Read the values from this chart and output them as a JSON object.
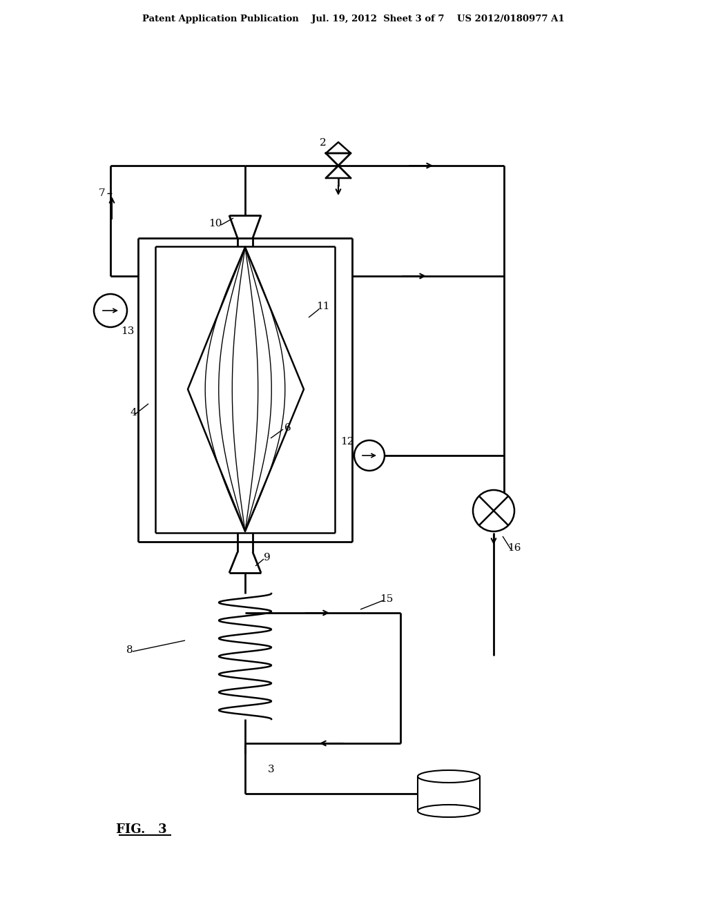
{
  "header": "Patent Application Publication    Jul. 19, 2012  Sheet 3 of 7    US 2012/0180977 A1",
  "fig_label": "FIG.   3",
  "bg_color": "#ffffff",
  "lc": "#000000"
}
